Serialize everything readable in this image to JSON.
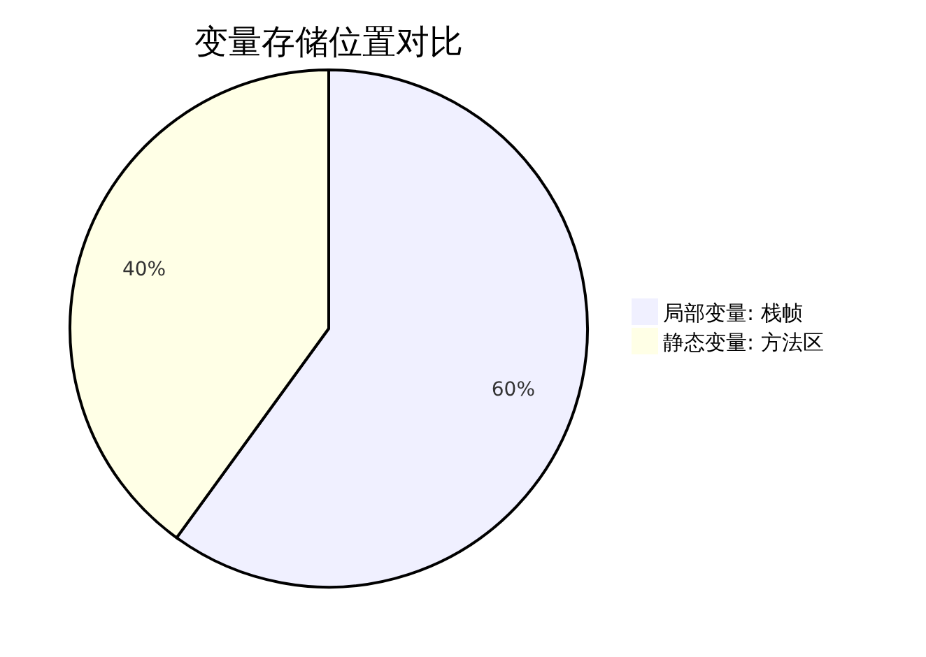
{
  "chart_data": {
    "type": "pie",
    "title": "变量存储位置对比",
    "categories": [
      "局部变量: 栈帧",
      "静态变量: 方法区"
    ],
    "values": [
      60,
      40
    ],
    "value_labels": [
      "60%",
      "40%"
    ],
    "colors": [
      "#f0f0ff",
      "#ffffe6"
    ],
    "legend": "right"
  }
}
